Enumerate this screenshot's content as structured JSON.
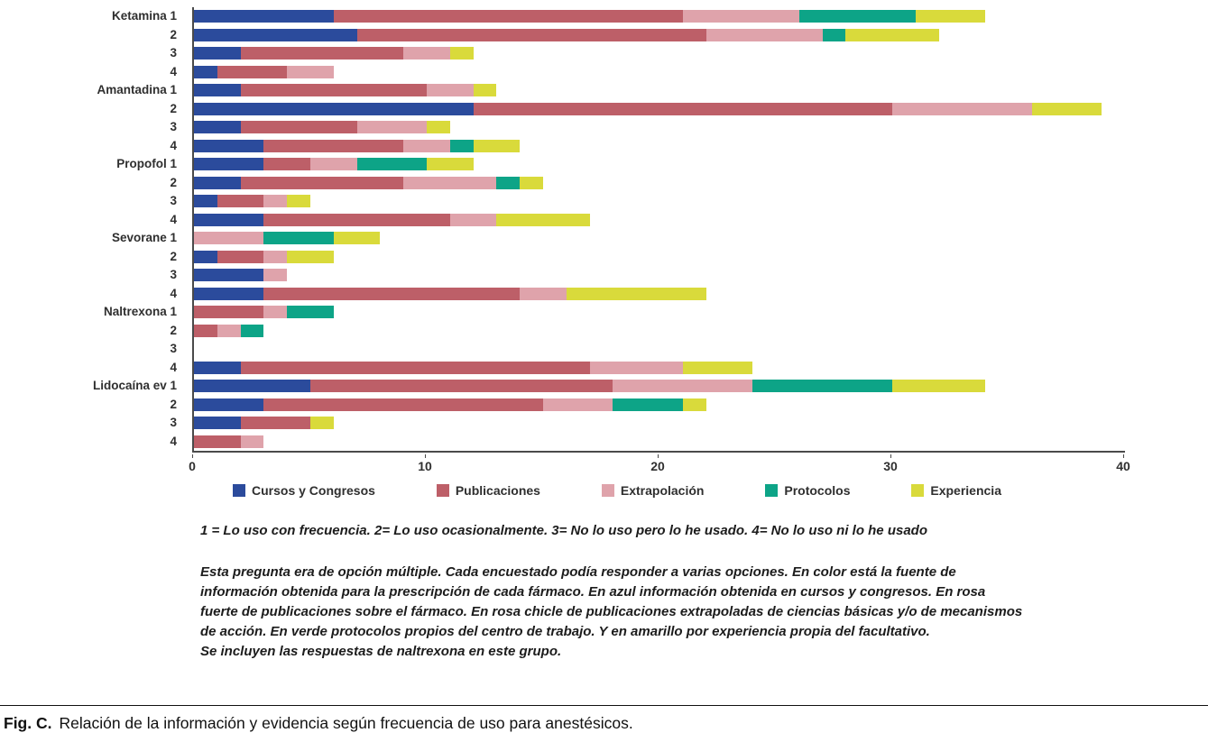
{
  "chart_data": {
    "type": "bar",
    "orientation": "horizontal",
    "stacked": true,
    "title": "",
    "xlabel": "",
    "ylabel": "",
    "xlim": [
      0,
      40
    ],
    "xticks": [
      0,
      10,
      20,
      30,
      40
    ],
    "grid": false,
    "legend_position": "bottom",
    "series_names": [
      "Cursos y Congresos",
      "Publicaciones",
      "Extrapolación",
      "Protocolos",
      "Experiencia"
    ],
    "series_keys": [
      "cursos-y-congresos",
      "publicaciones",
      "extrapolacion",
      "protocolos",
      "experiencia"
    ],
    "colors": [
      "#2b4b9c",
      "#bd5f68",
      "#dfa3ab",
      "#0da487",
      "#d9da3b"
    ],
    "groups": [
      {
        "name": "Ketamina",
        "rows": [
          {
            "label": "Ketamina 1",
            "values": [
              6,
              15,
              5,
              5,
              3
            ]
          },
          {
            "label": "2",
            "values": [
              7,
              15,
              5,
              1,
              4
            ]
          },
          {
            "label": "3",
            "values": [
              2,
              7,
              2,
              0,
              1
            ]
          },
          {
            "label": "4",
            "values": [
              1,
              3,
              2,
              0,
              0
            ]
          }
        ]
      },
      {
        "name": "Amantadina",
        "rows": [
          {
            "label": "Amantadina 1",
            "values": [
              2,
              8,
              2,
              0,
              1
            ]
          },
          {
            "label": "2",
            "values": [
              12,
              18,
              6,
              0,
              3
            ]
          },
          {
            "label": "3",
            "values": [
              2,
              5,
              3,
              0,
              1
            ]
          },
          {
            "label": "4",
            "values": [
              3,
              6,
              2,
              1,
              2
            ]
          }
        ]
      },
      {
        "name": "Propofol",
        "rows": [
          {
            "label": "Propofol 1",
            "values": [
              3,
              2,
              2,
              3,
              2
            ]
          },
          {
            "label": "2",
            "values": [
              2,
              7,
              4,
              1,
              1
            ]
          },
          {
            "label": "3",
            "values": [
              1,
              2,
              1,
              0,
              1
            ]
          },
          {
            "label": "4",
            "values": [
              3,
              8,
              2,
              0,
              4
            ]
          }
        ]
      },
      {
        "name": "Sevorane",
        "rows": [
          {
            "label": "Sevorane 1",
            "values": [
              0,
              0,
              3,
              3,
              2
            ]
          },
          {
            "label": "2",
            "values": [
              1,
              2,
              1,
              0,
              2
            ]
          },
          {
            "label": "3",
            "values": [
              3,
              0,
              1,
              0,
              0
            ]
          },
          {
            "label": "4",
            "values": [
              3,
              11,
              2,
              0,
              6
            ]
          }
        ]
      },
      {
        "name": "Naltrexona",
        "rows": [
          {
            "label": "Naltrexona 1",
            "values": [
              0,
              3,
              1,
              2,
              0
            ]
          },
          {
            "label": "2",
            "values": [
              0,
              1,
              1,
              1,
              0
            ]
          },
          {
            "label": "3",
            "values": [
              0,
              0,
              0,
              0,
              0
            ]
          },
          {
            "label": "4",
            "values": [
              2,
              15,
              4,
              0,
              3
            ]
          }
        ]
      },
      {
        "name": "Lidocaína ev",
        "rows": [
          {
            "label": "Lidocaína ev 1",
            "values": [
              5,
              13,
              6,
              6,
              4
            ]
          },
          {
            "label": "2",
            "values": [
              3,
              12,
              3,
              3,
              1
            ]
          },
          {
            "label": "3",
            "values": [
              2,
              3,
              0,
              0,
              1
            ]
          },
          {
            "label": "4",
            "values": [
              0,
              2,
              1,
              0,
              0
            ]
          }
        ]
      }
    ]
  },
  "notes": {
    "key_line": "1 = Lo uso con frecuencia. 2= Lo uso ocasionalmente. 3= No lo uso pero lo he usado. 4= No lo uso ni lo he usado",
    "paragraph": "Esta pregunta era de opción múltiple. Cada encuestado podía responder a varias opciones. En color está la fuente de información obtenida para la prescripción de cada fármaco. En azul información obtenida en cursos y congresos. En rosa fuerte de publicaciones sobre el fármaco. En rosa chicle de publicaciones extrapoladas de ciencias básicas y/o de mecanismos de acción. En verde protocolos propios del centro de trabajo. Y en amarillo por experiencia propia del facultativo.",
    "last_line": "Se incluyen las respuestas de naltrexona en este grupo."
  },
  "caption": {
    "fig_label": "Fig. C.",
    "text": "Relación de la información y evidencia según frecuencia de uso para anestésicos."
  }
}
